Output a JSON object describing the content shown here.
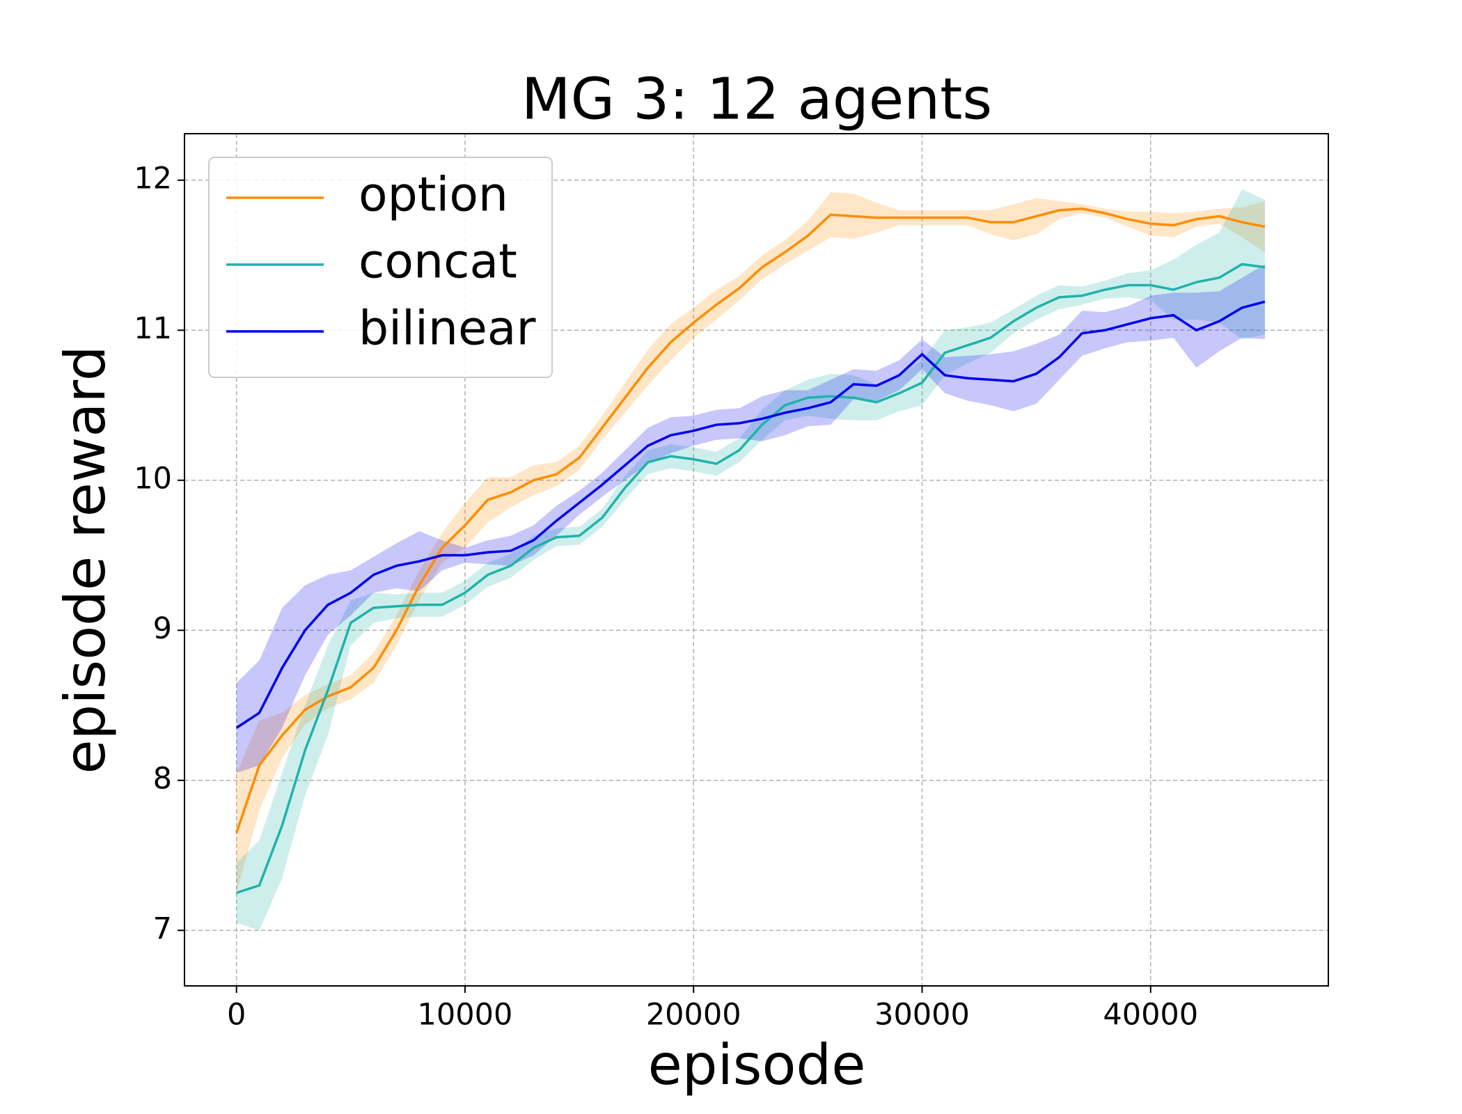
{
  "chart_data": {
    "type": "line",
    "title": "MG 3: 12 agents",
    "x_label": "episode",
    "y_label": "episode reward",
    "x": [
      0,
      1000,
      2000,
      3000,
      4000,
      5000,
      6000,
      7000,
      8000,
      9000,
      10000,
      11000,
      12000,
      13000,
      14000,
      15000,
      16000,
      17000,
      18000,
      19000,
      20000,
      21000,
      22000,
      23000,
      24000,
      25000,
      26000,
      27000,
      28000,
      29000,
      30000,
      31000,
      32000,
      33000,
      34000,
      35000,
      36000,
      37000,
      38000,
      39000,
      40000,
      41000,
      42000,
      43000,
      44000,
      45000
    ],
    "series": [
      {
        "name": "option",
        "color": "#ff8c00",
        "values": [
          7.65,
          8.1,
          8.3,
          8.47,
          8.56,
          8.62,
          8.75,
          9.0,
          9.3,
          9.55,
          9.7,
          9.87,
          9.92,
          10.0,
          10.04,
          10.15,
          10.35,
          10.55,
          10.75,
          10.92,
          11.05,
          11.17,
          11.28,
          11.42,
          11.52,
          11.63,
          11.77,
          11.76,
          11.75,
          11.75,
          11.75,
          11.75,
          11.75,
          11.72,
          11.72,
          11.76,
          11.8,
          11.81,
          11.78,
          11.74,
          11.71,
          11.7,
          11.74,
          11.76,
          11.72,
          11.69
        ],
        "spread": [
          0.4,
          0.3,
          0.15,
          0.1,
          0.08,
          0.08,
          0.1,
          0.1,
          0.1,
          0.1,
          0.15,
          0.15,
          0.1,
          0.1,
          0.08,
          0.08,
          0.08,
          0.1,
          0.12,
          0.12,
          0.1,
          0.1,
          0.08,
          0.08,
          0.08,
          0.1,
          0.15,
          0.15,
          0.1,
          0.05,
          0.05,
          0.05,
          0.05,
          0.08,
          0.12,
          0.12,
          0.06,
          0.03,
          0.03,
          0.05,
          0.08,
          0.08,
          0.05,
          0.05,
          0.1,
          0.17
        ]
      },
      {
        "name": "concat",
        "color": "#20b2aa",
        "values": [
          7.25,
          7.3,
          7.7,
          8.2,
          8.6,
          9.05,
          9.15,
          9.16,
          9.17,
          9.17,
          9.25,
          9.37,
          9.43,
          9.55,
          9.62,
          9.63,
          9.75,
          9.95,
          10.12,
          10.16,
          10.14,
          10.11,
          10.2,
          10.37,
          10.5,
          10.55,
          10.56,
          10.55,
          10.52,
          10.58,
          10.65,
          10.85,
          10.9,
          10.95,
          11.06,
          11.15,
          11.22,
          11.23,
          11.27,
          11.3,
          11.3,
          11.27,
          11.32,
          11.35,
          11.44,
          11.42
        ],
        "spread": [
          0.2,
          0.3,
          0.35,
          0.3,
          0.3,
          0.15,
          0.1,
          0.08,
          0.08,
          0.08,
          0.08,
          0.08,
          0.08,
          0.08,
          0.06,
          0.06,
          0.06,
          0.08,
          0.08,
          0.08,
          0.08,
          0.08,
          0.08,
          0.1,
          0.1,
          0.12,
          0.15,
          0.15,
          0.12,
          0.12,
          0.15,
          0.15,
          0.12,
          0.1,
          0.08,
          0.08,
          0.08,
          0.06,
          0.06,
          0.08,
          0.1,
          0.2,
          0.25,
          0.3,
          0.5,
          0.45
        ]
      },
      {
        "name": "bilinear",
        "color": "#0000ee",
        "values": [
          8.35,
          8.45,
          8.75,
          9.0,
          9.17,
          9.25,
          9.37,
          9.43,
          9.46,
          9.5,
          9.5,
          9.52,
          9.53,
          9.6,
          9.73,
          9.85,
          9.97,
          10.1,
          10.23,
          10.3,
          10.33,
          10.37,
          10.38,
          10.41,
          10.45,
          10.48,
          10.52,
          10.64,
          10.63,
          10.7,
          10.84,
          10.7,
          10.68,
          10.67,
          10.66,
          10.71,
          10.82,
          10.98,
          11.0,
          11.04,
          11.08,
          11.1,
          11.0,
          11.06,
          11.15,
          11.19
        ],
        "spread": [
          0.3,
          0.35,
          0.4,
          0.3,
          0.2,
          0.15,
          0.12,
          0.15,
          0.2,
          0.1,
          0.05,
          0.08,
          0.1,
          0.1,
          0.1,
          0.08,
          0.08,
          0.1,
          0.12,
          0.12,
          0.1,
          0.1,
          0.1,
          0.15,
          0.15,
          0.12,
          0.15,
          0.1,
          0.1,
          0.1,
          0.1,
          0.12,
          0.15,
          0.17,
          0.2,
          0.2,
          0.15,
          0.15,
          0.12,
          0.12,
          0.15,
          0.15,
          0.25,
          0.2,
          0.2,
          0.25
        ]
      }
    ],
    "xlim": [
      -2275,
      47775
    ],
    "ylim": [
      6.63,
      12.31
    ],
    "xticks": [
      0,
      10000,
      20000,
      30000,
      40000
    ],
    "yticks": [
      7,
      8,
      9,
      10,
      11,
      12
    ],
    "grid": true,
    "legend": "upper left"
  }
}
